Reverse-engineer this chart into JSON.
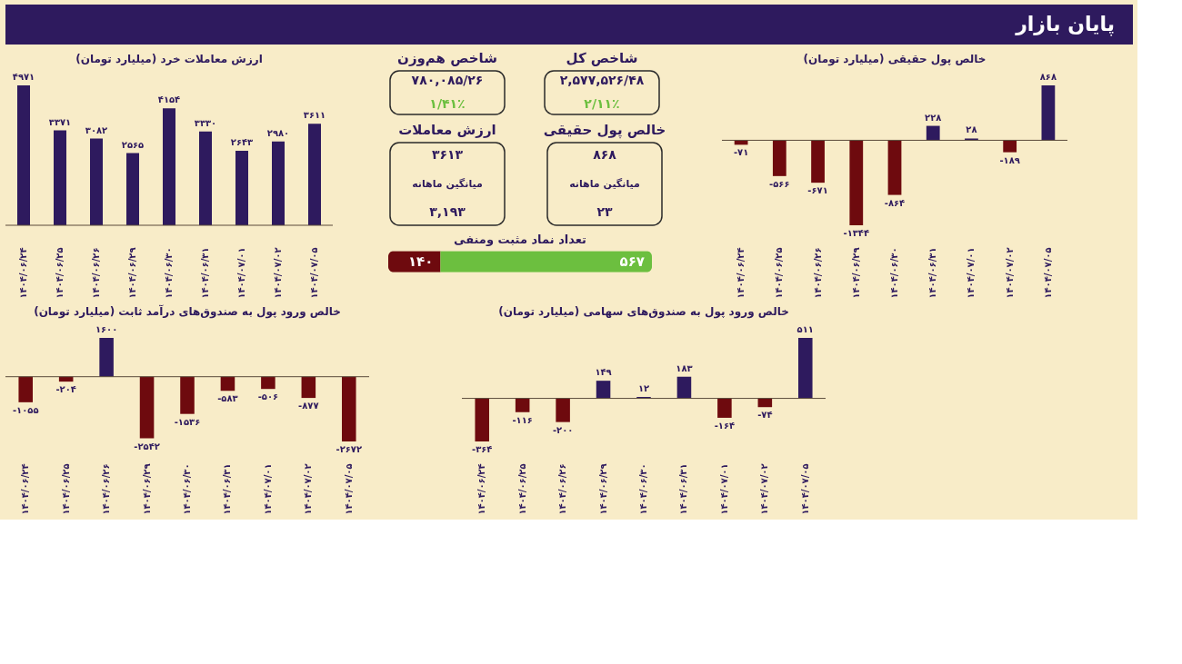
{
  "chart_data": [
    {
      "type": "other",
      "title": "پایان بازار"
    },
    {
      "type": "bar",
      "title": "ارزش معاملات خرد (میلیارد تومان)",
      "categories": [
        "۱۴۰۴/۰۶/۲۴",
        "۱۴۰۴/۰۶/۲۵",
        "۱۴۰۴/۰۶/۲۶",
        "۱۴۰۴/۰۶/۲۹",
        "۱۴۰۴/۰۶/۳۰",
        "۱۴۰۴/۰۶/۳۱",
        "۱۴۰۴/۰۷/۰۱",
        "۱۴۰۴/۰۷/۰۲",
        "۱۴۰۴/۰۷/۰۵"
      ],
      "values": [
        4971,
        3371,
        3082,
        2565,
        4154,
        3330,
        2643,
        2980,
        3611
      ],
      "value_labels": [
        "۴۹۷۱",
        "۳۳۷۱",
        "۳۰۸۲",
        "۲۵۶۵",
        "۴۱۵۴",
        "۳۳۳۰",
        "۲۶۴۳",
        "۲۹۸۰",
        "۳۶۱۱"
      ],
      "colors": [
        "#2e1a5e",
        "#2e1a5e",
        "#2e1a5e",
        "#2e1a5e",
        "#2e1a5e",
        "#2e1a5e",
        "#2e1a5e",
        "#2e1a5e",
        "#2e1a5e"
      ]
    },
    {
      "type": "other",
      "title": "شاخص هم‌وزن",
      "annotations": [
        "۷۸۰,۰۸۵/۲۶",
        "۱/۴۱٪"
      ]
    },
    {
      "type": "other",
      "title": "شاخص کل",
      "annotations": [
        "۲,۵۷۷,۵۲۶/۴۸",
        "۲/۱۱٪"
      ]
    },
    {
      "type": "other",
      "title": "ارزش معاملات",
      "annotations": [
        "۳۶۱۳",
        "میانگین ماهانه",
        "۳,۱۹۳"
      ]
    },
    {
      "type": "other",
      "title": "خالص پول حقیقی",
      "annotations": [
        "۸۶۸",
        "میانگین ماهانه",
        "۲۳"
      ]
    },
    {
      "type": "bar",
      "title": "تعداد نماد مثبت ومنفی",
      "orientation": "horizontal",
      "stacked": true,
      "categories": [
        null
      ],
      "series": [
        {
          "color": "#6e0a0e",
          "values": [
            140
          ],
          "value_labels": [
            "۱۴۰"
          ]
        },
        {
          "color": "#6cbf3f",
          "values": [
            567
          ],
          "value_labels": [
            "۵۶۷"
          ]
        }
      ]
    },
    {
      "type": "bar",
      "title": "خالص پول حقیقی (میلیارد تومان)",
      "categories": [
        "۱۴۰۴/۰۶/۲۴",
        "۱۴۰۴/۰۶/۲۵",
        "۱۴۰۴/۰۶/۲۶",
        "۱۴۰۴/۰۶/۲۹",
        "۱۴۰۴/۰۶/۳۰",
        "۱۴۰۴/۰۶/۳۱",
        "۱۴۰۴/۰۷/۰۱",
        "۱۴۰۴/۰۷/۰۲",
        "۱۴۰۴/۰۷/۰۵"
      ],
      "values": [
        -71,
        -566,
        -671,
        -1344,
        -864,
        228,
        28,
        -189,
        868
      ],
      "value_labels": [
        "-۷۱",
        "-۵۶۶",
        "-۶۷۱",
        "-۱۳۴۴",
        "-۸۶۴",
        "۲۲۸",
        "۲۸",
        "-۱۸۹",
        "۸۶۸"
      ],
      "colors": [
        "#6e0a0e",
        "#6e0a0e",
        "#6e0a0e",
        "#6e0a0e",
        "#6e0a0e",
        "#2e1a5e",
        "#2e1a5e",
        "#6e0a0e",
        "#2e1a5e"
      ]
    },
    {
      "type": "bar",
      "title": "خالص ورود پول به صندوق‌های درآمد ثابت (میلیارد تومان)",
      "categories": [
        "۱۴۰۴/۰۶/۲۴",
        "۱۴۰۴/۰۶/۲۵",
        "۱۴۰۴/۰۶/۲۶",
        "۱۴۰۴/۰۶/۲۹",
        "۱۴۰۴/۰۶/۳۰",
        "۱۴۰۴/۰۶/۳۱",
        "۱۴۰۴/۰۷/۰۱",
        "۱۴۰۴/۰۷/۰۲",
        "۱۴۰۴/۰۷/۰۵"
      ],
      "values": [
        -1055,
        -204,
        1600,
        -2542,
        -1536,
        -583,
        -506,
        -877,
        -2672
      ],
      "value_labels": [
        "-۱۰۵۵",
        "-۲۰۴",
        "۱۶۰۰",
        "-۲۵۴۲",
        "-۱۵۳۶",
        "-۵۸۳",
        "-۵۰۶",
        "-۸۷۷",
        "-۲۶۷۲"
      ],
      "colors": [
        "#6e0a0e",
        "#6e0a0e",
        "#2e1a5e",
        "#6e0a0e",
        "#6e0a0e",
        "#6e0a0e",
        "#6e0a0e",
        "#6e0a0e",
        "#6e0a0e"
      ]
    },
    {
      "type": "bar",
      "title": "خالص ورود پول به صندوق‌های سهامی (میلیارد تومان)",
      "categories": [
        "۱۴۰۴/۰۶/۲۴",
        "۱۴۰۴/۰۶/۲۵",
        "۱۴۰۴/۰۶/۲۶",
        "۱۴۰۴/۰۶/۲۹",
        "۱۴۰۴/۰۶/۳۰",
        "۱۴۰۴/۰۶/۳۱",
        "۱۴۰۴/۰۷/۰۱",
        "۱۴۰۴/۰۷/۰۲",
        "۱۴۰۴/۰۷/۰۵"
      ],
      "values": [
        -364,
        -116,
        -200,
        149,
        12,
        183,
        -164,
        -74,
        511
      ],
      "value_labels": [
        "-۳۶۴",
        "-۱۱۶",
        "-۲۰۰",
        "۱۴۹",
        "۱۲",
        "۱۸۳",
        "-۱۶۴",
        "-۷۴",
        "۵۱۱"
      ],
      "colors": [
        "#6e0a0e",
        "#6e0a0e",
        "#6e0a0e",
        "#2e1a5e",
        "#2e1a5e",
        "#2e1a5e",
        "#6e0a0e",
        "#6e0a0e",
        "#2e1a5e"
      ]
    }
  ]
}
